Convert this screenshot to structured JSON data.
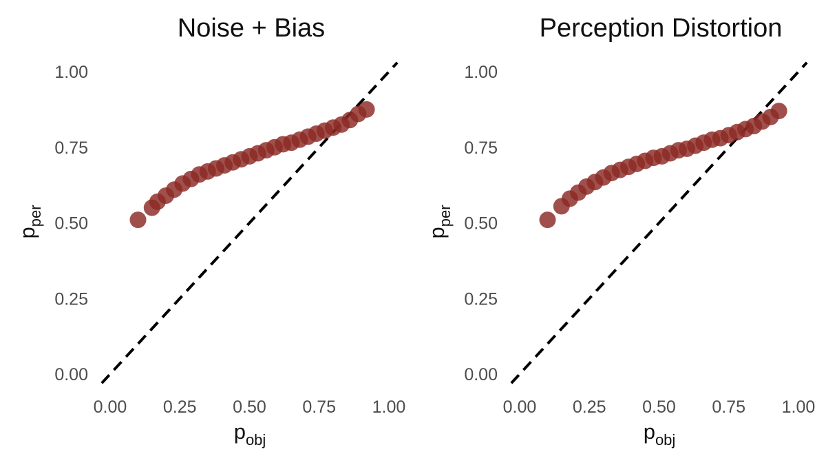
{
  "chart_data": [
    {
      "type": "scatter",
      "title": "Noise + Bias",
      "xlabel": {
        "main": "p",
        "sub": "obj"
      },
      "ylabel": {
        "main": "p",
        "sub": "per"
      },
      "xlim": [
        0,
        1
      ],
      "ylim": [
        0,
        1
      ],
      "x_ticks": [
        "0.00",
        "0.25",
        "0.50",
        "0.75",
        "1.00"
      ],
      "y_ticks": [
        "0.00",
        "0.25",
        "0.50",
        "0.75",
        "1.00"
      ],
      "reference_line": {
        "style": "dashed",
        "color": "#000000",
        "slope": 1,
        "intercept": 0
      },
      "point_color": "#8b2a25",
      "grid": false,
      "series": [
        {
          "x": [
            0.1,
            0.15,
            0.17,
            0.2,
            0.23,
            0.26,
            0.29,
            0.32,
            0.35,
            0.38,
            0.41,
            0.44,
            0.47,
            0.5,
            0.53,
            0.56,
            0.59,
            0.62,
            0.65,
            0.68,
            0.71,
            0.74,
            0.77,
            0.8,
            0.83,
            0.86,
            0.89,
            0.92
          ],
          "y": [
            0.51,
            0.55,
            0.57,
            0.59,
            0.61,
            0.63,
            0.645,
            0.66,
            0.67,
            0.68,
            0.69,
            0.7,
            0.71,
            0.72,
            0.73,
            0.74,
            0.75,
            0.76,
            0.765,
            0.775,
            0.785,
            0.795,
            0.805,
            0.815,
            0.825,
            0.84,
            0.86,
            0.875
          ]
        }
      ]
    },
    {
      "type": "scatter",
      "title": "Perception Distortion",
      "xlabel": {
        "main": "p",
        "sub": "obj"
      },
      "ylabel": {
        "main": "p",
        "sub": "per"
      },
      "xlim": [
        0,
        1
      ],
      "ylim": [
        0,
        1
      ],
      "x_ticks": [
        "0.00",
        "0.25",
        "0.50",
        "0.75",
        "1.00"
      ],
      "y_ticks": [
        "0.00",
        "0.25",
        "0.50",
        "0.75",
        "1.00"
      ],
      "reference_line": {
        "style": "dashed",
        "color": "#000000",
        "slope": 1,
        "intercept": 0
      },
      "point_color": "#8b2a25",
      "grid": false,
      "series": [
        {
          "x": [
            0.1,
            0.15,
            0.18,
            0.21,
            0.24,
            0.27,
            0.3,
            0.33,
            0.36,
            0.39,
            0.42,
            0.45,
            0.48,
            0.51,
            0.54,
            0.57,
            0.6,
            0.63,
            0.66,
            0.69,
            0.72,
            0.75,
            0.78,
            0.81,
            0.84,
            0.87,
            0.9,
            0.93
          ],
          "y": [
            0.51,
            0.555,
            0.58,
            0.6,
            0.62,
            0.635,
            0.65,
            0.665,
            0.675,
            0.685,
            0.695,
            0.705,
            0.715,
            0.72,
            0.73,
            0.74,
            0.745,
            0.755,
            0.765,
            0.775,
            0.78,
            0.79,
            0.8,
            0.81,
            0.82,
            0.835,
            0.85,
            0.87
          ]
        }
      ]
    }
  ]
}
